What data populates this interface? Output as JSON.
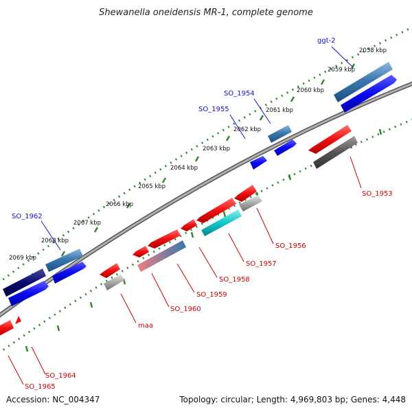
{
  "title": "Shewanella oneidensis MR-1, complete genome",
  "footer": {
    "accession": "Accession: NC_004347",
    "summary": "Topology: circular; Length: 4,969,803 bp; Genes: 4,448"
  },
  "ticks": [
    "2058 kbp",
    "2059 kbp",
    "2060 kbp",
    "2061 kbp",
    "2062 kbp",
    "2063 kbp",
    "2064 kbp",
    "2065 kbp",
    "2066 kbp",
    "2067 kbp",
    "2068 kbp",
    "2069 kbp"
  ],
  "gene_labels": {
    "forward": [
      "ggt-2",
      "SO_1954",
      "SO_1955",
      "SO_1962"
    ],
    "reverse": [
      "SO_1953",
      "SO_1956",
      "SO_1957",
      "SO_1958",
      "SO_1959",
      "SO_1960",
      "maa",
      "SO_1964",
      "SO_1965"
    ]
  },
  "colors": {
    "backbone": "#8a8a8a",
    "tick": "#2e8b2e",
    "forward_label": "#1010c8",
    "reverse_label": "#cc0000",
    "cds_blue": "#0a0af0",
    "cds_red": "#f01010",
    "cds_cyan": "#10c8c8",
    "cds_grey": "#a0a0a0",
    "cds_darkgrey": "#555555",
    "cds_navy": "#0a0a6e",
    "cds_steel": "#3a78b0"
  }
}
